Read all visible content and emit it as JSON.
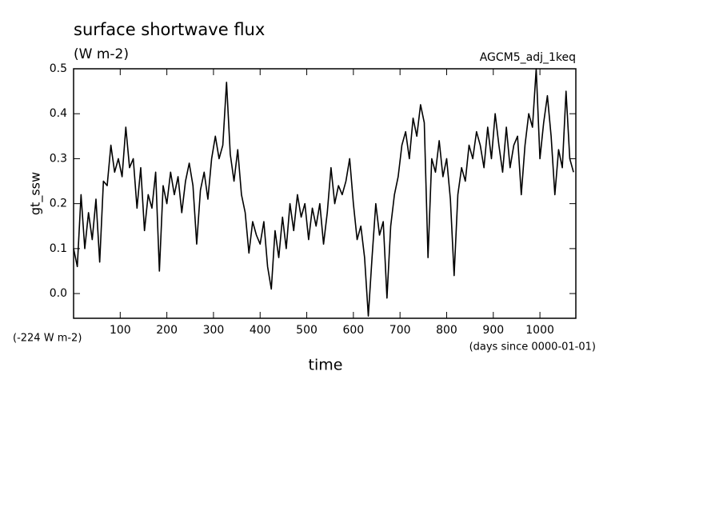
{
  "chart_data": {
    "type": "line",
    "title": "surface shortwave flux",
    "subtitle": "(W m-2)",
    "annotation": "AGCM5_adj_1keq",
    "offset_note": "(-224 W m-2)",
    "x_units": "(days since 0000-01-01)",
    "xlabel": "time",
    "ylabel": "gt_ssw",
    "xlim": [
      0,
      1077
    ],
    "ylim": [
      -0.055,
      0.5
    ],
    "xticks": [
      100,
      200,
      300,
      400,
      500,
      600,
      700,
      800,
      900,
      1000
    ],
    "yticks": [
      {
        "value": 0,
        "label": "0.0"
      },
      0.1,
      0.2,
      0.3,
      0.4,
      0.5
    ],
    "x": [
      0,
      8,
      16,
      24,
      32,
      40,
      48,
      56,
      64,
      72,
      80,
      88,
      96,
      104,
      112,
      120,
      128,
      136,
      144,
      152,
      160,
      168,
      176,
      184,
      192,
      200,
      208,
      216,
      224,
      232,
      240,
      248,
      256,
      264,
      272,
      280,
      288,
      296,
      304,
      312,
      320,
      328,
      336,
      344,
      352,
      360,
      368,
      376,
      384,
      392,
      400,
      408,
      416,
      424,
      432,
      440,
      448,
      456,
      464,
      472,
      480,
      488,
      496,
      504,
      512,
      520,
      528,
      536,
      544,
      552,
      560,
      568,
      576,
      584,
      592,
      600,
      608,
      616,
      624,
      632,
      640,
      648,
      656,
      664,
      672,
      680,
      688,
      696,
      704,
      712,
      720,
      728,
      736,
      744,
      752,
      760,
      768,
      776,
      784,
      792,
      800,
      808,
      816,
      824,
      832,
      840,
      848,
      856,
      864,
      872,
      880,
      888,
      896,
      904,
      912,
      920,
      928,
      936,
      944,
      952,
      960,
      968,
      976,
      984,
      992,
      1000,
      1008,
      1016,
      1024,
      1032,
      1040,
      1048,
      1056,
      1064,
      1072
    ],
    "series": [
      {
        "color": "#000000",
        "values": [
          0.1,
          0.06,
          0.22,
          0.1,
          0.18,
          0.12,
          0.21,
          0.07,
          0.25,
          0.24,
          0.33,
          0.27,
          0.3,
          0.26,
          0.37,
          0.28,
          0.3,
          0.19,
          0.28,
          0.14,
          0.22,
          0.19,
          0.27,
          0.05,
          0.24,
          0.2,
          0.27,
          0.22,
          0.26,
          0.18,
          0.25,
          0.29,
          0.24,
          0.11,
          0.23,
          0.27,
          0.21,
          0.3,
          0.35,
          0.3,
          0.33,
          0.47,
          0.31,
          0.25,
          0.32,
          0.22,
          0.18,
          0.09,
          0.16,
          0.13,
          0.11,
          0.16,
          0.06,
          0.01,
          0.14,
          0.08,
          0.17,
          0.1,
          0.2,
          0.14,
          0.22,
          0.17,
          0.2,
          0.12,
          0.19,
          0.15,
          0.2,
          0.11,
          0.18,
          0.28,
          0.2,
          0.24,
          0.22,
          0.25,
          0.3,
          0.2,
          0.12,
          0.15,
          0.08,
          -0.05,
          0.08,
          0.2,
          0.13,
          0.16,
          -0.01,
          0.15,
          0.22,
          0.26,
          0.33,
          0.36,
          0.3,
          0.39,
          0.35,
          0.42,
          0.38,
          0.08,
          0.3,
          0.27,
          0.34,
          0.26,
          0.3,
          0.21,
          0.04,
          0.22,
          0.28,
          0.25,
          0.33,
          0.3,
          0.36,
          0.33,
          0.28,
          0.37,
          0.3,
          0.4,
          0.33,
          0.27,
          0.37,
          0.28,
          0.33,
          0.35,
          0.22,
          0.33,
          0.4,
          0.37,
          0.5,
          0.3,
          0.38,
          0.44,
          0.35,
          0.22,
          0.32,
          0.28,
          0.45,
          0.3,
          0.27
        ]
      }
    ]
  }
}
